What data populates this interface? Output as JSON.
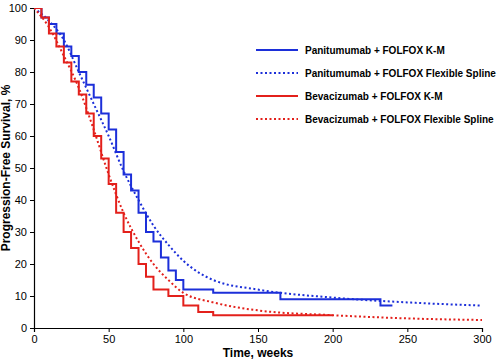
{
  "chart_data": {
    "type": "line",
    "x_label": "Time, weeks",
    "y_label": "Progression-Free Survival, %",
    "xlim": [
      0,
      300
    ],
    "xticks": [
      0,
      50,
      100,
      150,
      200,
      250,
      300
    ],
    "ylim": [
      0,
      100
    ],
    "yticks": [
      0,
      10,
      20,
      30,
      40,
      50,
      60,
      70,
      80,
      90,
      100
    ],
    "grid": false,
    "legend": "upper right",
    "series": [
      {
        "name": "Panitumumab + FOLFOX K-M",
        "color": "#1c2fd9",
        "type": "step",
        "line_style": "solid",
        "x": [
          0,
          5,
          10,
          15,
          20,
          25,
          30,
          35,
          40,
          45,
          50,
          55,
          60,
          65,
          70,
          75,
          80,
          85,
          90,
          95,
          100,
          120,
          160,
          165,
          230,
          232,
          240
        ],
        "values": [
          100,
          97,
          95,
          92,
          88,
          85,
          80,
          76,
          72,
          67,
          62,
          55,
          48,
          43,
          36,
          30,
          27,
          22,
          18,
          15,
          12,
          11,
          11,
          9,
          9,
          7,
          7
        ]
      },
      {
        "name": "Panitumumab + FOLFOX Flexible Spline",
        "color": "#1c2fd9",
        "type": "line",
        "line_style": "dotted",
        "x": [
          0,
          10,
          20,
          30,
          40,
          50,
          60,
          70,
          80,
          90,
          100,
          120,
          150,
          200,
          250,
          300
        ],
        "values": [
          100,
          96,
          90,
          80,
          70,
          60,
          49,
          40,
          32,
          26,
          21,
          15,
          12,
          9.5,
          8,
          7
        ]
      },
      {
        "name": "Bevacizumab + FOLFOX K-M",
        "color": "#e3201b",
        "type": "step",
        "line_style": "solid",
        "x": [
          0,
          5,
          10,
          15,
          20,
          25,
          30,
          35,
          40,
          45,
          50,
          55,
          60,
          65,
          70,
          75,
          80,
          90,
          100,
          110,
          120,
          200
        ],
        "values": [
          100,
          97,
          92,
          88,
          83,
          77,
          73,
          67,
          60,
          53,
          45,
          36,
          30,
          25,
          20,
          16,
          12,
          10,
          7,
          5,
          4,
          4
        ]
      },
      {
        "name": "Bevacizumab + FOLFOX Flexible Spline",
        "color": "#e3201b",
        "type": "line",
        "line_style": "dotted",
        "x": [
          0,
          10,
          20,
          30,
          40,
          50,
          60,
          70,
          80,
          90,
          100,
          120,
          150,
          200,
          250,
          300
        ],
        "values": [
          100,
          94,
          85,
          75,
          62,
          48,
          36,
          27,
          20,
          15,
          11,
          8,
          5.5,
          4,
          3,
          2.5
        ]
      }
    ]
  }
}
